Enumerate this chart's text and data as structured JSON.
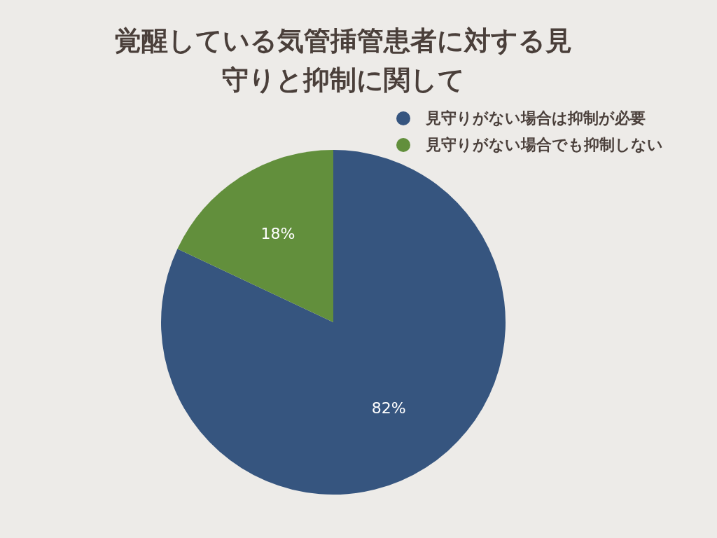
{
  "chart_data": {
    "type": "pie",
    "title": "覚醒している気管挿管患者に対する見守りと抑制に関して",
    "categories": [
      "見守りがない場合は抑制が必要",
      "見守りがない場合でも抑制しない"
    ],
    "values": [
      82,
      18
    ],
    "value_labels": [
      "82%",
      "18%"
    ],
    "colors": [
      "#36557f",
      "#628f3c"
    ],
    "legend": "top right"
  }
}
